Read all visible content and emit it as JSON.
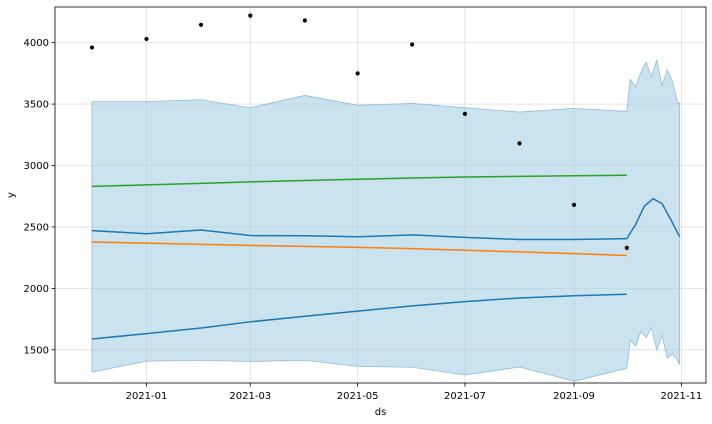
{
  "chart_data": {
    "type": "line",
    "xlabel": "ds",
    "ylabel": "y",
    "xlim": [
      "2020-11-10",
      "2021-11-15"
    ],
    "ylim": [
      1230,
      4290
    ],
    "grid": true,
    "x_ticks": [
      "2021-01",
      "2021-03",
      "2021-05",
      "2021-07",
      "2021-09",
      "2021-11"
    ],
    "y_ticks": [
      1500,
      2000,
      2500,
      3000,
      3500,
      4000
    ],
    "colors": {
      "observed": "#000000",
      "interval_fill": "#a9cfe5",
      "interval_edge": "#8fbcd9",
      "blue": "#1f77b4",
      "orange": "#ff7f0e",
      "green": "#2ca02c"
    },
    "observed_points": {
      "x": [
        "2020-12-01",
        "2021-01-01",
        "2021-02-01",
        "2021-03-01",
        "2021-04-01",
        "2021-05-01",
        "2021-06-01",
        "2021-07-01",
        "2021-08-01",
        "2021-09-01",
        "2021-10-01"
      ],
      "y": [
        3960,
        4030,
        4145,
        4220,
        4180,
        3750,
        3985,
        3420,
        3180,
        2680,
        2330
      ]
    },
    "series": [
      {
        "color": "#1f77b4",
        "x": [
          "2020-12-01",
          "2021-01-01",
          "2021-02-01",
          "2021-03-01",
          "2021-04-01",
          "2021-05-01",
          "2021-06-01",
          "2021-07-01",
          "2021-08-01",
          "2021-09-01",
          "2021-10-01"
        ],
        "y": [
          2470,
          2445,
          2475,
          2430,
          2428,
          2420,
          2435,
          2415,
          2398,
          2398,
          2405
        ]
      },
      {
        "color": "#1f77b4",
        "x": [
          "2021-10-01",
          "2021-10-06",
          "2021-10-11",
          "2021-10-16",
          "2021-10-21",
          "2021-10-26",
          "2021-10-31"
        ],
        "y": [
          2405,
          2520,
          2670,
          2730,
          2690,
          2560,
          2420
        ]
      },
      {
        "color": "#ff7f0e",
        "x": [
          "2020-12-01",
          "2021-01-01",
          "2021-02-01",
          "2021-03-01",
          "2021-04-01",
          "2021-05-01",
          "2021-06-01",
          "2021-07-01",
          "2021-08-01",
          "2021-09-01",
          "2021-10-01"
        ],
        "y": [
          2378,
          2368,
          2358,
          2350,
          2342,
          2334,
          2324,
          2310,
          2297,
          2283,
          2268
        ]
      },
      {
        "color": "#2ca02c",
        "x": [
          "2020-12-01",
          "2021-01-01",
          "2021-02-01",
          "2021-03-01",
          "2021-04-01",
          "2021-05-01",
          "2021-06-01",
          "2021-07-01",
          "2021-08-01",
          "2021-09-01",
          "2021-10-01"
        ],
        "y": [
          2830,
          2842,
          2855,
          2867,
          2878,
          2888,
          2898,
          2906,
          2912,
          2917,
          2921
        ]
      },
      {
        "color": "#1f77b4",
        "x": [
          "2020-12-01",
          "2021-01-01",
          "2021-02-01",
          "2021-03-01",
          "2021-04-01",
          "2021-05-01",
          "2021-06-01",
          "2021-07-01",
          "2021-08-01",
          "2021-09-01",
          "2021-10-01"
        ],
        "y": [
          1588,
          1632,
          1678,
          1728,
          1773,
          1815,
          1858,
          1892,
          1922,
          1940,
          1952
        ]
      }
    ],
    "interval": {
      "x": [
        "2020-12-01",
        "2021-01-01",
        "2021-02-01",
        "2021-03-01",
        "2021-04-01",
        "2021-05-01",
        "2021-06-01",
        "2021-07-01",
        "2021-08-01",
        "2021-09-01",
        "2021-10-01",
        "2021-10-03",
        "2021-10-06",
        "2021-10-09",
        "2021-10-12",
        "2021-10-15",
        "2021-10-18",
        "2021-10-21",
        "2021-10-24",
        "2021-10-27",
        "2021-10-30",
        "2021-10-31"
      ],
      "upper": [
        3520,
        3520,
        3535,
        3470,
        3570,
        3490,
        3505,
        3470,
        3435,
        3465,
        3440,
        3700,
        3640,
        3760,
        3840,
        3720,
        3860,
        3650,
        3780,
        3680,
        3500,
        3510
      ],
      "lower": [
        1318,
        1408,
        1415,
        1405,
        1415,
        1365,
        1358,
        1295,
        1360,
        1245,
        1350,
        1580,
        1530,
        1650,
        1600,
        1680,
        1500,
        1620,
        1430,
        1470,
        1410,
        1380
      ]
    }
  }
}
